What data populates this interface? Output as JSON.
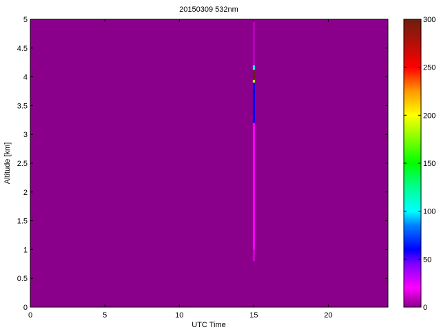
{
  "chart_data": {
    "type": "heatmap",
    "title": "20150309 532nm",
    "xlabel": "UTC Time",
    "ylabel": "Altitude [km]",
    "xlim": [
      0,
      24
    ],
    "ylim": [
      0,
      5
    ],
    "xticks": [
      0,
      5,
      10,
      15,
      20
    ],
    "yticks": [
      0,
      0.5,
      1,
      1.5,
      2,
      2.5,
      3,
      3.5,
      4,
      4.5,
      5
    ],
    "grid": false,
    "background_value": 0,
    "colorbar": {
      "range": [
        0,
        300
      ],
      "ticks": [
        0,
        50,
        100,
        150,
        200,
        250,
        300
      ],
      "colormap": [
        {
          "value": 0,
          "color": "#8b008b"
        },
        {
          "value": 20,
          "color": "#ff00ff"
        },
        {
          "value": 45,
          "color": "#8000ff"
        },
        {
          "value": 60,
          "color": "#0000ff"
        },
        {
          "value": 85,
          "color": "#0080ff"
        },
        {
          "value": 100,
          "color": "#00ffff"
        },
        {
          "value": 125,
          "color": "#00ff90"
        },
        {
          "value": 150,
          "color": "#00ff00"
        },
        {
          "value": 200,
          "color": "#ffff00"
        },
        {
          "value": 225,
          "color": "#ff9900"
        },
        {
          "value": 250,
          "color": "#ff0000"
        },
        {
          "value": 300,
          "color": "#6b1f10"
        }
      ]
    },
    "features": [
      {
        "time": 15,
        "alt_from": 0.8,
        "alt_to": 1.0,
        "value": 12
      },
      {
        "time": 15,
        "alt_from": 1.0,
        "alt_to": 3.2,
        "value": 20
      },
      {
        "time": 15,
        "alt_from": 3.2,
        "alt_to": 3.9,
        "value": 60
      },
      {
        "time": 15,
        "alt_from": 3.9,
        "alt_to": 3.95,
        "value": 190
      },
      {
        "time": 15,
        "alt_from": 3.95,
        "alt_to": 4.12,
        "value": 300
      },
      {
        "time": 15,
        "alt_from": 4.12,
        "alt_to": 4.2,
        "value": 100
      },
      {
        "time": 15,
        "alt_from": 4.2,
        "alt_to": 5.0,
        "value": 8
      }
    ]
  }
}
